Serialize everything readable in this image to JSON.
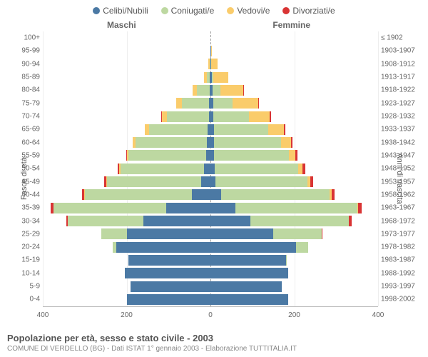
{
  "chart": {
    "type": "population-pyramid",
    "title": "Popolazione per età, sesso e stato civile - 2003",
    "subtitle": "COMUNE DI VERDELLO (BG) - Dati ISTAT 1° gennaio 2003 - Elaborazione TUTTITALIA.IT",
    "side_labels": {
      "left": "Maschi",
      "right": "Femmine"
    },
    "axis_titles": {
      "left": "Fasce di età",
      "right": "Anni di nascita"
    },
    "legend": [
      {
        "label": "Celibi/Nubili",
        "color": "#4b79a4"
      },
      {
        "label": "Coniugati/e",
        "color": "#bdd8a1"
      },
      {
        "label": "Vedovi/e",
        "color": "#facc6b"
      },
      {
        "label": "Divorziati/e",
        "color": "#d93434"
      }
    ],
    "x_max": 400,
    "x_ticks": [
      400,
      200,
      0,
      200,
      400
    ],
    "grid_positions": [
      0,
      25,
      50,
      75,
      100
    ],
    "label_fontsize": 10,
    "title_fontsize": 13,
    "background_color": "#ffffff",
    "grid_color": "#eeeeee",
    "centerline_color": "#999999",
    "rows": [
      {
        "age": "100+",
        "birth": "≤ 1902",
        "m": {
          "s": 0,
          "c": 0,
          "w": 0,
          "d": 0
        },
        "f": {
          "s": 0,
          "c": 0,
          "w": 0,
          "d": 0
        }
      },
      {
        "age": "95-99",
        "birth": "1903-1907",
        "m": {
          "s": 0,
          "c": 0,
          "w": 0,
          "d": 0
        },
        "f": {
          "s": 1,
          "c": 0,
          "w": 3,
          "d": 0
        }
      },
      {
        "age": "90-94",
        "birth": "1908-1912",
        "m": {
          "s": 0,
          "c": 2,
          "w": 3,
          "d": 0
        },
        "f": {
          "s": 2,
          "c": 0,
          "w": 15,
          "d": 0
        }
      },
      {
        "age": "85-89",
        "birth": "1913-1917",
        "m": {
          "s": 1,
          "c": 8,
          "w": 7,
          "d": 0
        },
        "f": {
          "s": 3,
          "c": 3,
          "w": 36,
          "d": 0
        }
      },
      {
        "age": "80-84",
        "birth": "1918-1922",
        "m": {
          "s": 2,
          "c": 30,
          "w": 10,
          "d": 0
        },
        "f": {
          "s": 5,
          "c": 18,
          "w": 55,
          "d": 1
        }
      },
      {
        "age": "75-79",
        "birth": "1923-1927",
        "m": {
          "s": 3,
          "c": 65,
          "w": 14,
          "d": 0
        },
        "f": {
          "s": 7,
          "c": 45,
          "w": 62,
          "d": 1
        }
      },
      {
        "age": "70-74",
        "birth": "1928-1932",
        "m": {
          "s": 4,
          "c": 100,
          "w": 12,
          "d": 1
        },
        "f": {
          "s": 7,
          "c": 85,
          "w": 50,
          "d": 2
        }
      },
      {
        "age": "65-69",
        "birth": "1933-1937",
        "m": {
          "s": 6,
          "c": 140,
          "w": 10,
          "d": 1
        },
        "f": {
          "s": 8,
          "c": 130,
          "w": 38,
          "d": 2
        }
      },
      {
        "age": "60-64",
        "birth": "1938-1942",
        "m": {
          "s": 8,
          "c": 170,
          "w": 7,
          "d": 1
        },
        "f": {
          "s": 8,
          "c": 160,
          "w": 25,
          "d": 3
        }
      },
      {
        "age": "55-59",
        "birth": "1943-1947",
        "m": {
          "s": 10,
          "c": 185,
          "w": 4,
          "d": 2
        },
        "f": {
          "s": 8,
          "c": 180,
          "w": 15,
          "d": 5
        }
      },
      {
        "age": "50-54",
        "birth": "1948-1952",
        "m": {
          "s": 15,
          "c": 200,
          "w": 3,
          "d": 3
        },
        "f": {
          "s": 10,
          "c": 200,
          "w": 10,
          "d": 6
        }
      },
      {
        "age": "45-49",
        "birth": "1953-1957",
        "m": {
          "s": 22,
          "c": 225,
          "w": 2,
          "d": 5
        },
        "f": {
          "s": 12,
          "c": 220,
          "w": 6,
          "d": 7
        }
      },
      {
        "age": "40-44",
        "birth": "1958-1962",
        "m": {
          "s": 45,
          "c": 255,
          "w": 1,
          "d": 6
        },
        "f": {
          "s": 25,
          "c": 260,
          "w": 4,
          "d": 8
        }
      },
      {
        "age": "35-39",
        "birth": "1963-1967",
        "m": {
          "s": 105,
          "c": 270,
          "w": 0,
          "d": 7
        },
        "f": {
          "s": 60,
          "c": 290,
          "w": 2,
          "d": 9
        }
      },
      {
        "age": "30-34",
        "birth": "1968-1972",
        "m": {
          "s": 160,
          "c": 180,
          "w": 0,
          "d": 4
        },
        "f": {
          "s": 95,
          "c": 235,
          "w": 1,
          "d": 6
        }
      },
      {
        "age": "25-29",
        "birth": "1973-1977",
        "m": {
          "s": 200,
          "c": 60,
          "w": 0,
          "d": 1
        },
        "f": {
          "s": 150,
          "c": 115,
          "w": 0,
          "d": 2
        }
      },
      {
        "age": "20-24",
        "birth": "1978-1982",
        "m": {
          "s": 225,
          "c": 8,
          "w": 0,
          "d": 0
        },
        "f": {
          "s": 205,
          "c": 28,
          "w": 0,
          "d": 0
        }
      },
      {
        "age": "15-19",
        "birth": "1983-1987",
        "m": {
          "s": 195,
          "c": 0,
          "w": 0,
          "d": 0
        },
        "f": {
          "s": 180,
          "c": 1,
          "w": 0,
          "d": 0
        }
      },
      {
        "age": "10-14",
        "birth": "1988-1992",
        "m": {
          "s": 205,
          "c": 0,
          "w": 0,
          "d": 0
        },
        "f": {
          "s": 185,
          "c": 0,
          "w": 0,
          "d": 0
        }
      },
      {
        "age": "5-9",
        "birth": "1993-1997",
        "m": {
          "s": 190,
          "c": 0,
          "w": 0,
          "d": 0
        },
        "f": {
          "s": 170,
          "c": 0,
          "w": 0,
          "d": 0
        }
      },
      {
        "age": "0-4",
        "birth": "1998-2002",
        "m": {
          "s": 200,
          "c": 0,
          "w": 0,
          "d": 0
        },
        "f": {
          "s": 185,
          "c": 0,
          "w": 0,
          "d": 0
        }
      }
    ]
  }
}
